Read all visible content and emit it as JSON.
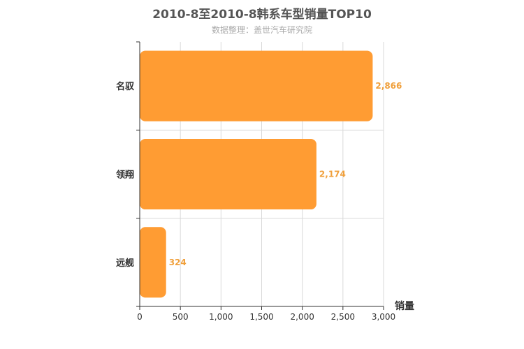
{
  "title": "2010-8至2010-8韩系车型销量TOP10",
  "subtitle": "数据整理：盖世汽车研究院",
  "colors": {
    "bar": "#ff9c33",
    "label": "#f0a03c",
    "grid": "#d9d9d9",
    "axis": "#333333"
  },
  "chart_data": {
    "type": "bar",
    "orientation": "horizontal",
    "categories": [
      "名驭",
      "领翔",
      "远舰"
    ],
    "values": [
      2866,
      2174,
      324
    ],
    "value_labels": [
      "2,866",
      "2,174",
      "324"
    ],
    "xlabel": "销量",
    "ylabel": "",
    "xlim": [
      0,
      3000
    ],
    "xticks": [
      0,
      500,
      1000,
      1500,
      2000,
      2500,
      3000
    ],
    "xtick_labels": [
      "0",
      "500",
      "1,000",
      "1,500",
      "2,000",
      "2,500",
      "3,000"
    ],
    "grid": true,
    "legend": "none"
  }
}
